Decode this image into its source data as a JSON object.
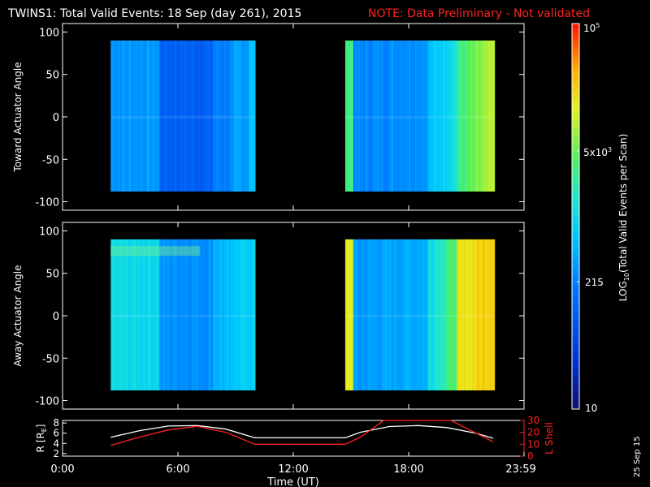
{
  "title": {
    "main": "TWINS1: Total Valid Events: 18 Sep (day 261), 2015",
    "note": "NOTE: Data Preliminary - Not validated",
    "note_color": "#ff2020"
  },
  "chart_data": [
    {
      "type": "heatmap",
      "name": "Toward Actuator Angle",
      "ylabel": "Toward Actuator Angle",
      "ylim": [
        -110,
        110
      ],
      "yticks": [
        100,
        50,
        0,
        -50,
        -100
      ],
      "xlim_hours": [
        0,
        24
      ],
      "blocks": [
        {
          "t_start_h": 2.5,
          "t_end_h": 10.0,
          "angle_min": -88,
          "angle_max": 90,
          "profile": "toward1"
        },
        {
          "t_start_h": 14.7,
          "t_end_h": 22.4,
          "angle_min": -88,
          "angle_max": 90,
          "profile": "toward2"
        }
      ]
    },
    {
      "type": "heatmap",
      "name": "Away Actuator Angle",
      "ylabel": "Away Actuator Angle",
      "ylim": [
        -110,
        110
      ],
      "yticks": [
        100,
        50,
        0,
        -50,
        -100
      ],
      "xlim_hours": [
        0,
        24
      ],
      "blocks": [
        {
          "t_start_h": 2.5,
          "t_end_h": 10.0,
          "angle_min": -88,
          "angle_max": 90,
          "profile": "away1"
        },
        {
          "t_start_h": 14.7,
          "t_end_h": 22.4,
          "angle_min": -88,
          "angle_max": 90,
          "profile": "away2"
        }
      ]
    },
    {
      "type": "line",
      "name": "orbit",
      "ylabel_left": "R [R",
      "ylabel_left_sub": "E",
      "ylabel_left_end": "]",
      "ylabel_right": "L Shell",
      "ylim_left": [
        1.5,
        8.5
      ],
      "yticks_left": [
        8,
        6,
        4,
        2
      ],
      "ylim_right": [
        0,
        30
      ],
      "yticks_right": [
        30,
        20,
        10,
        0
      ],
      "series": [
        {
          "name": "R",
          "color": "#ffffff",
          "axis": "left",
          "x": [
            2.5,
            4,
            5.5,
            7,
            8.5,
            10,
            11,
            12,
            13,
            14.7,
            15.5,
            17,
            18.5,
            20,
            21.5,
            22.4
          ],
          "y": [
            5.2,
            6.5,
            7.4,
            7.5,
            6.8,
            5.1,
            5.1,
            5.1,
            5.1,
            5.1,
            6.2,
            7.3,
            7.5,
            7.1,
            6.0,
            5.0
          ]
        },
        {
          "name": "L Shell",
          "color": "#ff2020",
          "axis": "right",
          "x": [
            2.5,
            4,
            5.5,
            7,
            8.5,
            10,
            12,
            14.7,
            15.5,
            16.7,
            20.2,
            22.4
          ],
          "y": [
            9,
            16,
            22,
            25,
            20,
            10,
            10,
            10,
            16,
            30,
            30,
            12
          ]
        }
      ],
      "xticks": [
        "0:00",
        "6:00",
        "12:00",
        "18:00",
        "23:59"
      ],
      "xtick_hours": [
        0,
        6,
        12,
        18,
        24
      ],
      "xlabel": "Time (UT)"
    }
  ],
  "colorbar": {
    "label_main": "LOG",
    "label_sub": "10",
    "label_end": "(Total Valid Events per Scan)",
    "tick_10": "10",
    "tick_215": "215",
    "tick_5k_base": "5x10",
    "tick_5k_exp": "3",
    "tick_max_base": "10",
    "tick_max_exp": "5"
  },
  "date_stamp": "25 Sep 15"
}
